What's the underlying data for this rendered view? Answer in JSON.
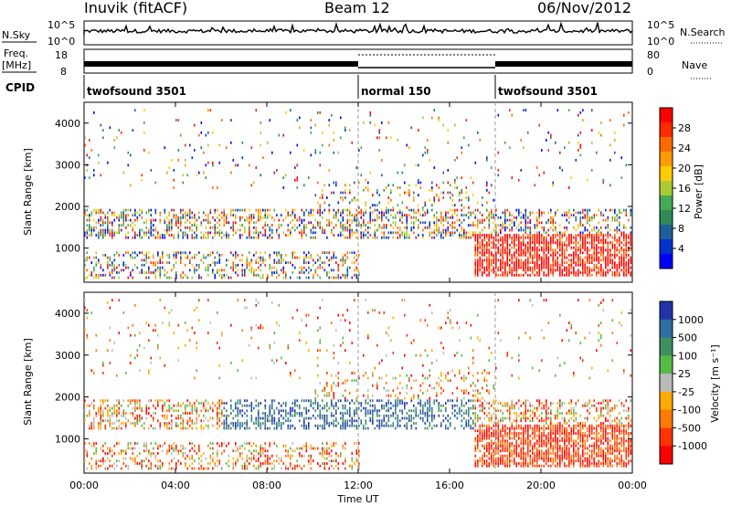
{
  "header": {
    "station": "Inuvik (fitACF)",
    "beam": "Beam 12",
    "date": "06/Nov/2012"
  },
  "nsky_panel": {
    "left_label": "N.Sky",
    "right_label": "N.Search",
    "left_ticks": [
      "10^5",
      "10^0"
    ],
    "right_ticks": [
      "10^5",
      "10^0"
    ]
  },
  "freq_panel": {
    "left_label_1": "Freq.",
    "left_label_2": "[MHz]",
    "right_label": "Nave",
    "left_ticks": [
      "18",
      "8"
    ],
    "right_ticks": [
      "80",
      "0"
    ]
  },
  "cpid_panel": {
    "label": "CPID",
    "segments": [
      {
        "name": "twofsound 3501",
        "start_hour": 0,
        "end_hour": 12
      },
      {
        "name": "normal 150",
        "start_hour": 12,
        "end_hour": 18
      },
      {
        "name": "twofsound 3501",
        "start_hour": 18,
        "end_hour": 24
      }
    ]
  },
  "chart_data": [
    {
      "type": "heatmap",
      "ylabel": "Slant Range [km]",
      "ylim": [
        180,
        4500
      ],
      "yticks": [
        "1000",
        "2000",
        "3000",
        "4000"
      ],
      "xlim_hours": [
        0,
        24
      ],
      "colorbar": {
        "label": "Power [dB]",
        "ticks": [
          "28",
          "24",
          "20",
          "16",
          "12",
          "8",
          "4"
        ],
        "colors": [
          "#ff0000",
          "#ff2a00",
          "#ff6a00",
          "#ff9a00",
          "#ffcc00",
          "#aacc33",
          "#44aa55",
          "#2e8b57",
          "#1f5f99",
          "#0033cc",
          "#0000ff"
        ]
      }
    },
    {
      "type": "heatmap",
      "ylabel": "Slant Range [km]",
      "ylim": [
        180,
        4500
      ],
      "yticks": [
        "1000",
        "2000",
        "3000",
        "4000"
      ],
      "xlim_hours": [
        0,
        24
      ],
      "colorbar": {
        "label": "Velocity [m s⁻¹]",
        "ticks": [
          "1000",
          "500",
          "100",
          "25",
          "-25",
          "-100",
          "-500",
          "-1000"
        ],
        "colors": [
          "#2233aa",
          "#2e6ea0",
          "#3f8f5f",
          "#55bb44",
          "#bbbbbb",
          "#ffaa00",
          "#ff7a00",
          "#ff3300",
          "#ff0000"
        ]
      }
    }
  ],
  "x_axis": {
    "label": "Time UT",
    "ticks": [
      "00:00",
      "04:00",
      "08:00",
      "12:00",
      "16:00",
      "20:00",
      "00:00"
    ]
  },
  "colors": {
    "axis": "#000000",
    "dashed_marker": "#999999"
  }
}
